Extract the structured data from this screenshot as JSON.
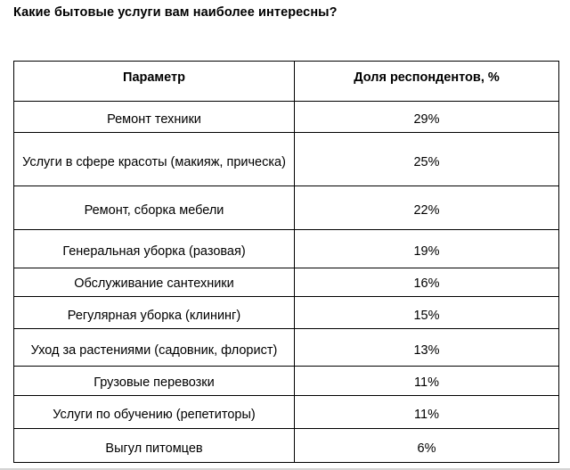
{
  "page": {
    "title": "Какие бытовые услуги вам наиболее интересны?"
  },
  "table": {
    "headers": [
      "Параметр",
      "Доля респондентов, %"
    ],
    "rows": [
      {
        "param": "Ремонт техники",
        "value": "29%"
      },
      {
        "param": "Услуги в сфере красоты (макияж, прическа)",
        "value": "25%"
      },
      {
        "param": "Ремонт, сборка мебели",
        "value": "22%"
      },
      {
        "param": "Генеральная уборка (разовая)",
        "value": "19%"
      },
      {
        "param": "Обслуживание сантехники",
        "value": "16%"
      },
      {
        "param": "Регулярная уборка (клининг)",
        "value": "15%"
      },
      {
        "param": "Уход за растениями (садовник, флорист)",
        "value": "13%"
      },
      {
        "param": "Грузовые перевозки",
        "value": "11%"
      },
      {
        "param": "Услуги по обучению (репетиторы)",
        "value": "11%"
      },
      {
        "param": "Выгул питомцев",
        "value": "6%"
      }
    ]
  },
  "chart_data": {
    "type": "table",
    "title": "Какие бытовые услуги вам наиболее интересны?",
    "columns": [
      "Параметр",
      "Доля респондентов, %"
    ],
    "categories": [
      "Ремонт техники",
      "Услуги в сфере красоты (макияж, прическа)",
      "Ремонт, сборка мебели",
      "Генеральная уборка (разовая)",
      "Обслуживание сантехники",
      "Регулярная уборка (клининг)",
      "Уход за растениями (садовник, флорист)",
      "Грузовые перевозки",
      "Услуги по обучению (репетиторы)",
      "Выгул питомцев"
    ],
    "values": [
      29,
      25,
      22,
      19,
      16,
      15,
      13,
      11,
      11,
      6
    ]
  },
  "colors": {
    "text": "#000000",
    "table_border": "#000000",
    "page_background": "#ffffff",
    "bottom_edge": "#d4d4d4"
  }
}
